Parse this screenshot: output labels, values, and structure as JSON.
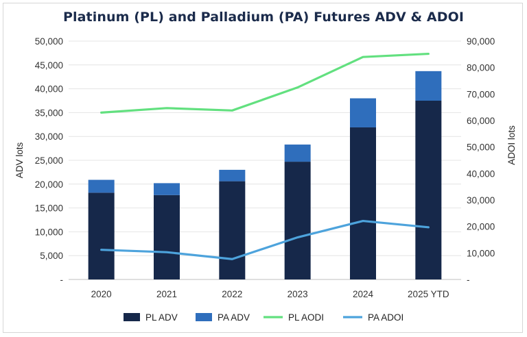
{
  "chart_data": {
    "type": "bar",
    "title": "Platinum (PL) and Palladium (PA) Futures ADV & ADOI",
    "categories": [
      "2020",
      "2021",
      "2022",
      "2023",
      "2024",
      "2025 YTD"
    ],
    "ylabel": "ADV lots",
    "y2label": "ADOI lots",
    "ylim": [
      0,
      50000
    ],
    "y2lim": [
      0,
      90000
    ],
    "yticks": [
      "-",
      "5,000",
      "10,000",
      "15,000",
      "20,000",
      "25,000",
      "30,000",
      "35,000",
      "40,000",
      "45,000",
      "50,000"
    ],
    "y2ticks": [
      "-",
      "10,000",
      "20,000",
      "30,000",
      "40,000",
      "50,000",
      "60,000",
      "70,000",
      "80,000",
      "90,000"
    ],
    "bar_series": [
      {
        "name": "PL ADV",
        "color": "#16284a",
        "values": [
          18200,
          17700,
          20600,
          24700,
          31900,
          37500
        ]
      },
      {
        "name": "PA ADV",
        "color": "#2f6ebc",
        "values": [
          2700,
          2500,
          2400,
          3600,
          6100,
          6200
        ]
      }
    ],
    "line_series": [
      {
        "name": "PL AODI",
        "color": "#62e07f",
        "axis": "right",
        "values": [
          63000,
          64700,
          63800,
          72500,
          84000,
          85200
        ]
      },
      {
        "name": "PA ADOI",
        "color": "#4da3dc",
        "axis": "right",
        "values": [
          11200,
          10300,
          7700,
          15900,
          22100,
          19700
        ]
      }
    ],
    "legend_position": "bottom",
    "grid": true
  }
}
